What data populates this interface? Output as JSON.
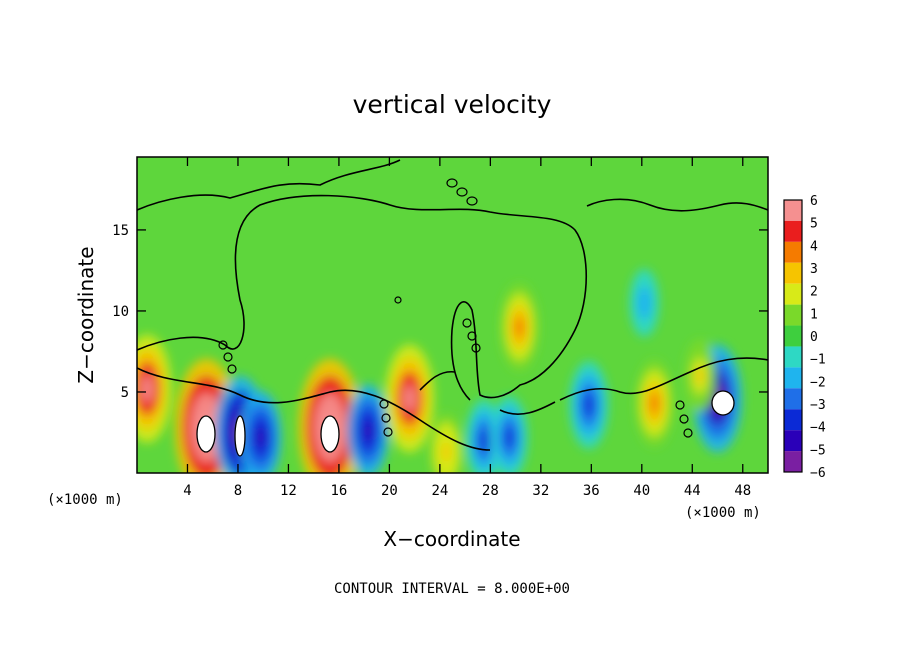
{
  "chart_data": {
    "type": "heatmap",
    "title": "vertical velocity",
    "xlabel": "X−coordinate",
    "ylabel": "Z−coordinate",
    "x_unit_label": "(×1000 m)",
    "xlim": [
      0,
      50
    ],
    "ylim": [
      0,
      19.5
    ],
    "x_ticks": [
      4,
      8,
      12,
      16,
      20,
      24,
      28,
      32,
      36,
      40,
      44,
      48
    ],
    "y_ticks": [
      5,
      10,
      15
    ],
    "colorbar": {
      "min": -6,
      "max": 6,
      "ticks": [
        "6",
        "5",
        "4",
        "3",
        "2",
        "1",
        "0",
        "−1",
        "−2",
        "−3",
        "−4",
        "−5",
        "−6"
      ]
    },
    "contour_interval_label": "CONTOUR INTERVAL = 8.000E+00",
    "features": [
      {
        "x": 0.8,
        "z": 5.2,
        "w": 6.0
      },
      {
        "x": 5.5,
        "z": 2.8,
        "w": 9.0
      },
      {
        "x": 8.2,
        "z": 2.5,
        "w": -6.5
      },
      {
        "x": 9.8,
        "z": 2.2,
        "w": -4.5
      },
      {
        "x": 15.3,
        "z": 2.8,
        "w": 9.0
      },
      {
        "x": 18.3,
        "z": 2.6,
        "w": -4.5
      },
      {
        "x": 21.6,
        "z": 4.6,
        "w": 6.0
      },
      {
        "x": 24.5,
        "z": 1.3,
        "w": 3.0
      },
      {
        "x": 27.5,
        "z": 2.0,
        "w": -3.5
      },
      {
        "x": 29.5,
        "z": 2.2,
        "w": -3.5
      },
      {
        "x": 30.3,
        "z": 9.0,
        "w": 4.0
      },
      {
        "x": 35.8,
        "z": 4.2,
        "w": -4.0
      },
      {
        "x": 41.0,
        "z": 4.3,
        "w": 4.0
      },
      {
        "x": 46.0,
        "z": 4.6,
        "w": -6.0
      },
      {
        "x": 40.2,
        "z": 10.5,
        "w": -2.0
      },
      {
        "x": 44.6,
        "z": 6.0,
        "w": 2.5
      }
    ]
  }
}
